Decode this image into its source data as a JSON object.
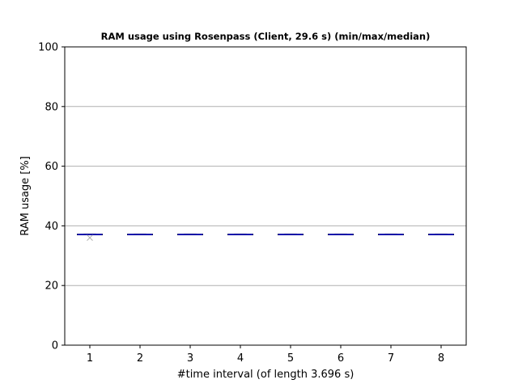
{
  "chart_data": {
    "type": "boxplot",
    "title": "RAM usage using Rosenpass (Client, 29.6 s) (min/max/median)",
    "xlabel": "#time interval (of length 3.696 s)",
    "ylabel": "RAM usage [%]",
    "categories": [
      "1",
      "2",
      "3",
      "4",
      "5",
      "6",
      "7",
      "8"
    ],
    "ylim": [
      0,
      100
    ],
    "yticks": [
      0,
      20,
      40,
      60,
      80,
      100
    ],
    "grid": "horizontal",
    "series": [
      {
        "min": [
          37.0,
          37.0,
          37.0,
          37.0,
          37.0,
          37.0,
          37.0,
          37.0
        ],
        "median": [
          37.1,
          37.1,
          37.1,
          37.1,
          37.1,
          37.1,
          37.1,
          37.1
        ],
        "max": [
          37.2,
          37.2,
          37.2,
          37.2,
          37.2,
          37.2,
          37.2,
          37.2
        ],
        "outliers": [
          [
            36.0
          ],
          [],
          [],
          [],
          [],
          [],
          [],
          []
        ]
      }
    ],
    "colors": {
      "box": "#000000",
      "median": "#0000cc",
      "grid": "#b0b0b0",
      "outlier": "#b0b0b0"
    }
  }
}
